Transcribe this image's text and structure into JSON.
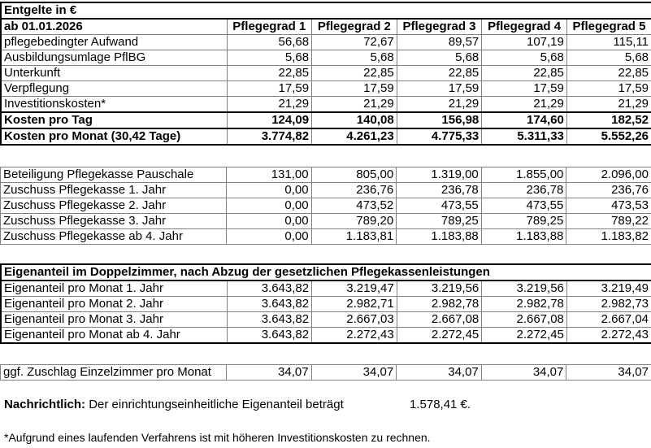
{
  "title": "Entgelte in €",
  "date_label": "ab 01.01.2026",
  "grades": [
    "Pflegegrad 1",
    "Pflegegrad 2",
    "Pflegegrad 3",
    "Pflegegrad 4",
    "Pflegegrad 5"
  ],
  "costs": [
    {
      "label": "pflegebedingter Aufwand",
      "values": [
        "56,68",
        "72,67",
        "89,57",
        "107,19",
        "115,11"
      ]
    },
    {
      "label": "Ausbildungsumlage PflBG",
      "values": [
        "5,68",
        "5,68",
        "5,68",
        "5,68",
        "5,68"
      ]
    },
    {
      "label": "Unterkunft",
      "values": [
        "22,85",
        "22,85",
        "22,85",
        "22,85",
        "22,85"
      ]
    },
    {
      "label": "Verpflegung",
      "values": [
        "17,59",
        "17,59",
        "17,59",
        "17,59",
        "17,59"
      ]
    },
    {
      "label": "Investitionskosten*",
      "values": [
        "21,29",
        "21,29",
        "21,29",
        "21,29",
        "21,29"
      ]
    }
  ],
  "cost_per_day": {
    "label": "Kosten pro Tag",
    "values": [
      "124,09",
      "140,08",
      "156,98",
      "174,60",
      "182,52"
    ]
  },
  "cost_per_month": {
    "label": "Kosten pro Monat (30,42 Tage)",
    "values": [
      "3.774,82",
      "4.261,23",
      "4.775,33",
      "5.311,33",
      "5.552,26"
    ]
  },
  "insurance": [
    {
      "label": "Beteiligung Pflegekasse Pauschale",
      "values": [
        "131,00",
        "805,00",
        "1.319,00",
        "1.855,00",
        "2.096,00"
      ]
    },
    {
      "label": "Zuschuss Pflegekasse 1. Jahr",
      "values": [
        "0,00",
        "236,76",
        "236,78",
        "236,78",
        "236,76"
      ]
    },
    {
      "label": "Zuschuss Pflegekasse 2. Jahr",
      "values": [
        "0,00",
        "473,52",
        "473,55",
        "473,55",
        "473,53"
      ]
    },
    {
      "label": "Zuschuss Pflegekasse 3. Jahr",
      "values": [
        "0,00",
        "789,20",
        "789,25",
        "789,25",
        "789,22"
      ]
    },
    {
      "label": "Zuschuss Pflegekasse ab 4. Jahr",
      "values": [
        "0,00",
        "1.183,81",
        "1.183,88",
        "1.183,88",
        "1.183,82"
      ]
    }
  ],
  "own_share_heading": "Eigenanteil im Doppelzimmer, nach Abzug der gesetzlichen Pflegekassenleistungen",
  "own_share": [
    {
      "label": "Eigenanteil pro Monat 1. Jahr",
      "values": [
        "3.643,82",
        "3.219,47",
        "3.219,56",
        "3.219,56",
        "3.219,49"
      ]
    },
    {
      "label": "Eigenanteil pro Monat 2. Jahr",
      "values": [
        "3.643,82",
        "2.982,71",
        "2.982,78",
        "2.982,78",
        "2.982,73"
      ]
    },
    {
      "label": "Eigenanteil pro Monat 3. Jahr",
      "values": [
        "3.643,82",
        "2.667,03",
        "2.667,08",
        "2.667,08",
        "2.667,04"
      ]
    },
    {
      "label": "Eigenanteil pro Monat ab 4. Jahr",
      "values": [
        "3.643,82",
        "2.272,43",
        "2.272,45",
        "2.272,45",
        "2.272,43"
      ]
    }
  ],
  "single_room": {
    "label": "ggf. Zuschlag Einzelzimmer pro Monat",
    "values": [
      "34,07",
      "34,07",
      "34,07",
      "34,07",
      "34,07"
    ]
  },
  "note": {
    "bold": "Nachrichtlich:",
    "text": "Der einrichtungseinheitliche Eigenanteil beträgt",
    "value": "1.578,41 €."
  },
  "footnote": "*Aufgrund eines laufenden Verfahrens ist mit höheren Investitionskosten zu rechnen."
}
